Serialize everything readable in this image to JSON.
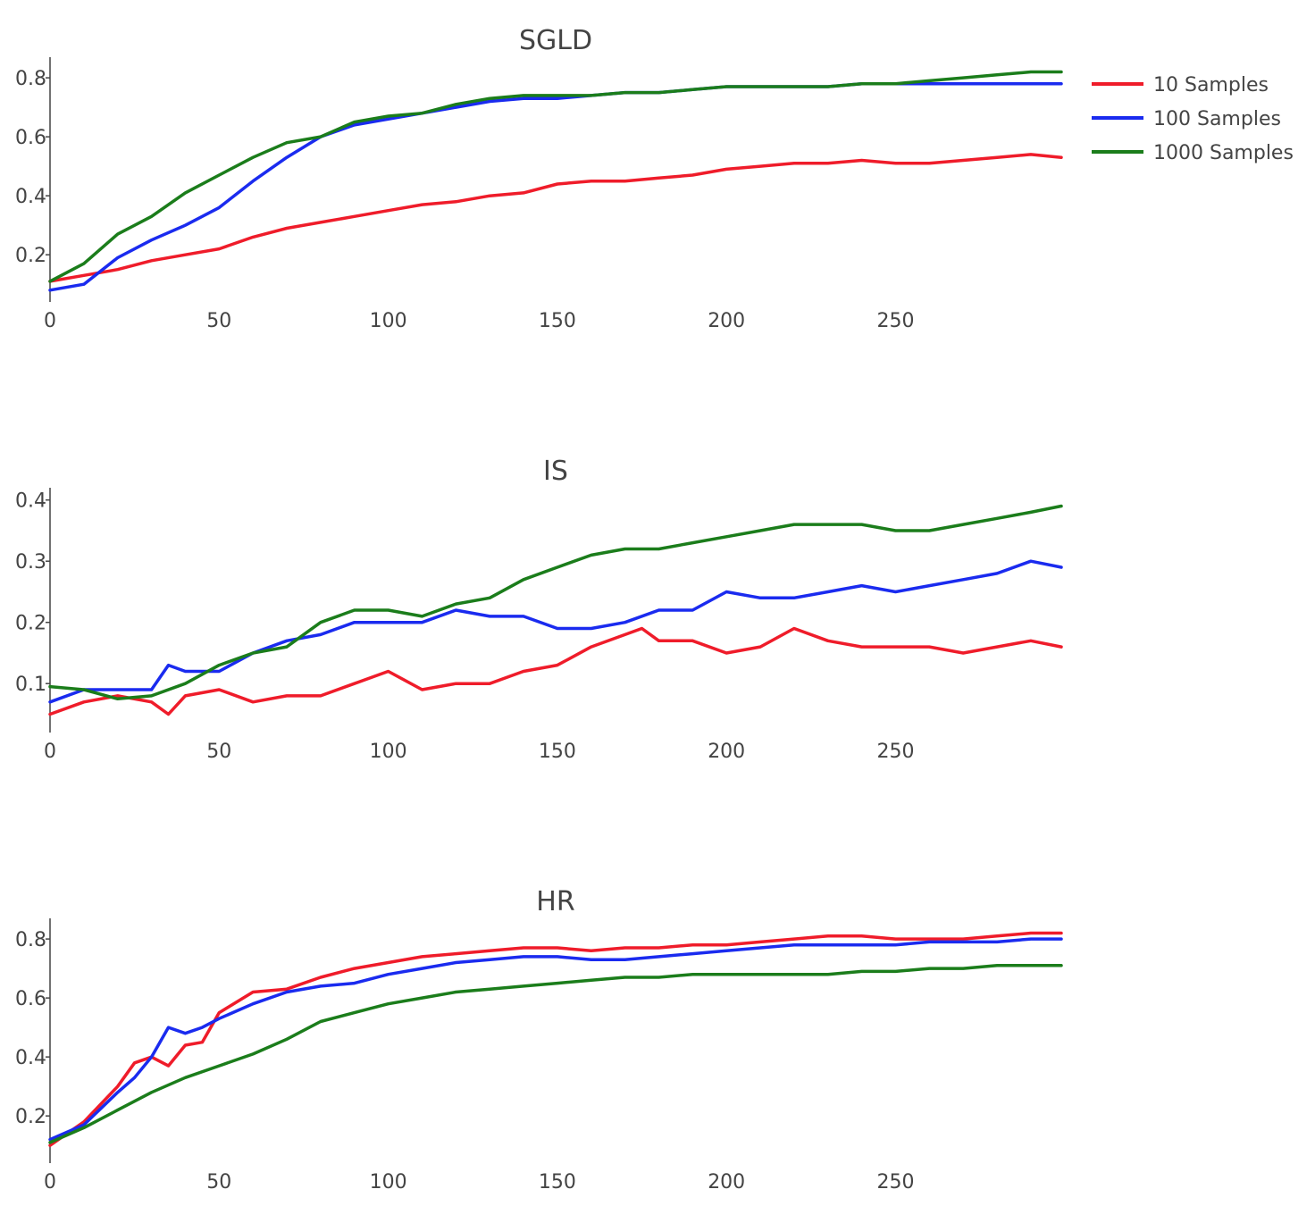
{
  "chart_data": [
    {
      "type": "line",
      "title": "SGLD",
      "xlabel": "",
      "ylabel": "",
      "xlim": [
        0,
        299
      ],
      "ylim": [
        0.04,
        0.87
      ],
      "xticks": [
        0,
        50,
        100,
        150,
        200,
        250
      ],
      "yticks": [
        0.2,
        0.4,
        0.6,
        0.8
      ],
      "series": [
        {
          "name": "10 Samples",
          "color": "#ef1c2a",
          "x": [
            0,
            10,
            20,
            30,
            40,
            50,
            60,
            70,
            80,
            90,
            100,
            110,
            120,
            130,
            140,
            150,
            160,
            170,
            180,
            190,
            200,
            210,
            220,
            230,
            240,
            250,
            260,
            270,
            280,
            290,
            299
          ],
          "y": [
            0.11,
            0.13,
            0.15,
            0.18,
            0.2,
            0.22,
            0.26,
            0.29,
            0.31,
            0.33,
            0.35,
            0.37,
            0.38,
            0.4,
            0.41,
            0.44,
            0.45,
            0.45,
            0.46,
            0.47,
            0.49,
            0.5,
            0.51,
            0.51,
            0.52,
            0.51,
            0.51,
            0.52,
            0.53,
            0.54,
            0.53
          ]
        },
        {
          "name": "100 Samples",
          "color": "#1a2bef",
          "x": [
            0,
            10,
            20,
            30,
            40,
            50,
            60,
            70,
            80,
            90,
            100,
            110,
            120,
            130,
            140,
            150,
            160,
            170,
            180,
            190,
            200,
            210,
            220,
            230,
            240,
            250,
            260,
            270,
            280,
            290,
            299
          ],
          "y": [
            0.08,
            0.1,
            0.19,
            0.25,
            0.3,
            0.36,
            0.45,
            0.53,
            0.6,
            0.64,
            0.66,
            0.68,
            0.7,
            0.72,
            0.73,
            0.73,
            0.74,
            0.75,
            0.75,
            0.76,
            0.77,
            0.77,
            0.77,
            0.77,
            0.78,
            0.78,
            0.78,
            0.78,
            0.78,
            0.78,
            0.78
          ]
        },
        {
          "name": "1000 Samples",
          "color": "#1b7d1b",
          "x": [
            0,
            10,
            20,
            30,
            40,
            50,
            60,
            70,
            80,
            90,
            100,
            110,
            120,
            130,
            140,
            150,
            160,
            170,
            180,
            190,
            200,
            210,
            220,
            230,
            240,
            250,
            260,
            270,
            280,
            290,
            299
          ],
          "y": [
            0.11,
            0.17,
            0.27,
            0.33,
            0.41,
            0.47,
            0.53,
            0.58,
            0.6,
            0.65,
            0.67,
            0.68,
            0.71,
            0.73,
            0.74,
            0.74,
            0.74,
            0.75,
            0.75,
            0.76,
            0.77,
            0.77,
            0.77,
            0.77,
            0.78,
            0.78,
            0.79,
            0.8,
            0.81,
            0.82,
            0.82
          ]
        }
      ]
    },
    {
      "type": "line",
      "title": "IS",
      "xlabel": "",
      "ylabel": "",
      "xlim": [
        0,
        299
      ],
      "ylim": [
        0.02,
        0.42
      ],
      "xticks": [
        0,
        50,
        100,
        150,
        200,
        250
      ],
      "yticks": [
        0.1,
        0.2,
        0.3,
        0.4
      ],
      "series": [
        {
          "name": "10 Samples",
          "color": "#ef1c2a",
          "x": [
            0,
            10,
            20,
            30,
            35,
            40,
            50,
            60,
            70,
            80,
            90,
            100,
            110,
            120,
            130,
            140,
            150,
            160,
            170,
            175,
            180,
            190,
            200,
            210,
            220,
            230,
            240,
            250,
            260,
            270,
            280,
            290,
            299
          ],
          "y": [
            0.05,
            0.07,
            0.08,
            0.07,
            0.05,
            0.08,
            0.09,
            0.07,
            0.08,
            0.08,
            0.1,
            0.12,
            0.09,
            0.1,
            0.1,
            0.12,
            0.13,
            0.16,
            0.18,
            0.19,
            0.17,
            0.17,
            0.15,
            0.16,
            0.19,
            0.17,
            0.16,
            0.16,
            0.16,
            0.15,
            0.16,
            0.17,
            0.16
          ]
        },
        {
          "name": "100 Samples",
          "color": "#1a2bef",
          "x": [
            0,
            10,
            20,
            30,
            35,
            40,
            50,
            60,
            70,
            80,
            90,
            100,
            110,
            120,
            130,
            140,
            150,
            160,
            170,
            180,
            190,
            200,
            210,
            220,
            230,
            240,
            250,
            260,
            270,
            280,
            290,
            299
          ],
          "y": [
            0.07,
            0.09,
            0.09,
            0.09,
            0.13,
            0.12,
            0.12,
            0.15,
            0.17,
            0.18,
            0.2,
            0.2,
            0.2,
            0.22,
            0.21,
            0.21,
            0.19,
            0.19,
            0.2,
            0.22,
            0.22,
            0.25,
            0.24,
            0.24,
            0.25,
            0.26,
            0.25,
            0.26,
            0.27,
            0.28,
            0.3,
            0.29
          ]
        },
        {
          "name": "1000 Samples",
          "color": "#1b7d1b",
          "x": [
            0,
            10,
            20,
            30,
            40,
            50,
            60,
            70,
            80,
            90,
            100,
            110,
            120,
            130,
            140,
            150,
            160,
            170,
            180,
            190,
            200,
            210,
            220,
            230,
            240,
            250,
            260,
            270,
            280,
            290,
            299
          ],
          "y": [
            0.095,
            0.09,
            0.075,
            0.08,
            0.1,
            0.13,
            0.15,
            0.16,
            0.2,
            0.22,
            0.22,
            0.21,
            0.23,
            0.24,
            0.27,
            0.29,
            0.31,
            0.32,
            0.32,
            0.33,
            0.34,
            0.35,
            0.36,
            0.36,
            0.36,
            0.35,
            0.35,
            0.36,
            0.37,
            0.38,
            0.39
          ]
        }
      ]
    },
    {
      "type": "line",
      "title": "HR",
      "xlabel": "",
      "ylabel": "",
      "xlim": [
        0,
        299
      ],
      "ylim": [
        0.04,
        0.87
      ],
      "xticks": [
        0,
        50,
        100,
        150,
        200,
        250
      ],
      "yticks": [
        0.2,
        0.4,
        0.6,
        0.8
      ],
      "series": [
        {
          "name": "10 Samples",
          "color": "#ef1c2a",
          "x": [
            0,
            10,
            20,
            25,
            30,
            35,
            40,
            45,
            50,
            60,
            70,
            80,
            90,
            100,
            110,
            120,
            130,
            140,
            150,
            160,
            170,
            180,
            190,
            200,
            210,
            220,
            230,
            240,
            250,
            260,
            270,
            280,
            290,
            299
          ],
          "y": [
            0.1,
            0.18,
            0.3,
            0.38,
            0.4,
            0.37,
            0.44,
            0.45,
            0.55,
            0.62,
            0.63,
            0.67,
            0.7,
            0.72,
            0.74,
            0.75,
            0.76,
            0.77,
            0.77,
            0.76,
            0.77,
            0.77,
            0.78,
            0.78,
            0.79,
            0.8,
            0.81,
            0.81,
            0.8,
            0.8,
            0.8,
            0.81,
            0.82,
            0.82
          ]
        },
        {
          "name": "100 Samples",
          "color": "#1a2bef",
          "x": [
            0,
            10,
            20,
            25,
            30,
            35,
            40,
            45,
            50,
            60,
            70,
            80,
            90,
            100,
            110,
            120,
            130,
            140,
            150,
            160,
            170,
            180,
            190,
            200,
            210,
            220,
            230,
            240,
            250,
            260,
            270,
            280,
            290,
            299
          ],
          "y": [
            0.12,
            0.17,
            0.28,
            0.33,
            0.4,
            0.5,
            0.48,
            0.5,
            0.53,
            0.58,
            0.62,
            0.64,
            0.65,
            0.68,
            0.7,
            0.72,
            0.73,
            0.74,
            0.74,
            0.73,
            0.73,
            0.74,
            0.75,
            0.76,
            0.77,
            0.78,
            0.78,
            0.78,
            0.78,
            0.79,
            0.79,
            0.79,
            0.8,
            0.8
          ]
        },
        {
          "name": "1000 Samples",
          "color": "#1b7d1b",
          "x": [
            0,
            10,
            20,
            30,
            40,
            50,
            60,
            70,
            80,
            90,
            100,
            110,
            120,
            130,
            140,
            150,
            160,
            170,
            180,
            190,
            200,
            210,
            220,
            230,
            240,
            250,
            260,
            270,
            280,
            290,
            299
          ],
          "y": [
            0.11,
            0.16,
            0.22,
            0.28,
            0.33,
            0.37,
            0.41,
            0.46,
            0.52,
            0.55,
            0.58,
            0.6,
            0.62,
            0.63,
            0.64,
            0.65,
            0.66,
            0.67,
            0.67,
            0.68,
            0.68,
            0.68,
            0.68,
            0.68,
            0.69,
            0.69,
            0.7,
            0.7,
            0.71,
            0.71,
            0.71
          ]
        }
      ]
    }
  ],
  "legend": {
    "items": [
      {
        "label": "10 Samples",
        "color": "#ef1c2a"
      },
      {
        "label": "100 Samples",
        "color": "#1a2bef"
      },
      {
        "label": "1000 Samples",
        "color": "#1b7d1b"
      }
    ]
  }
}
